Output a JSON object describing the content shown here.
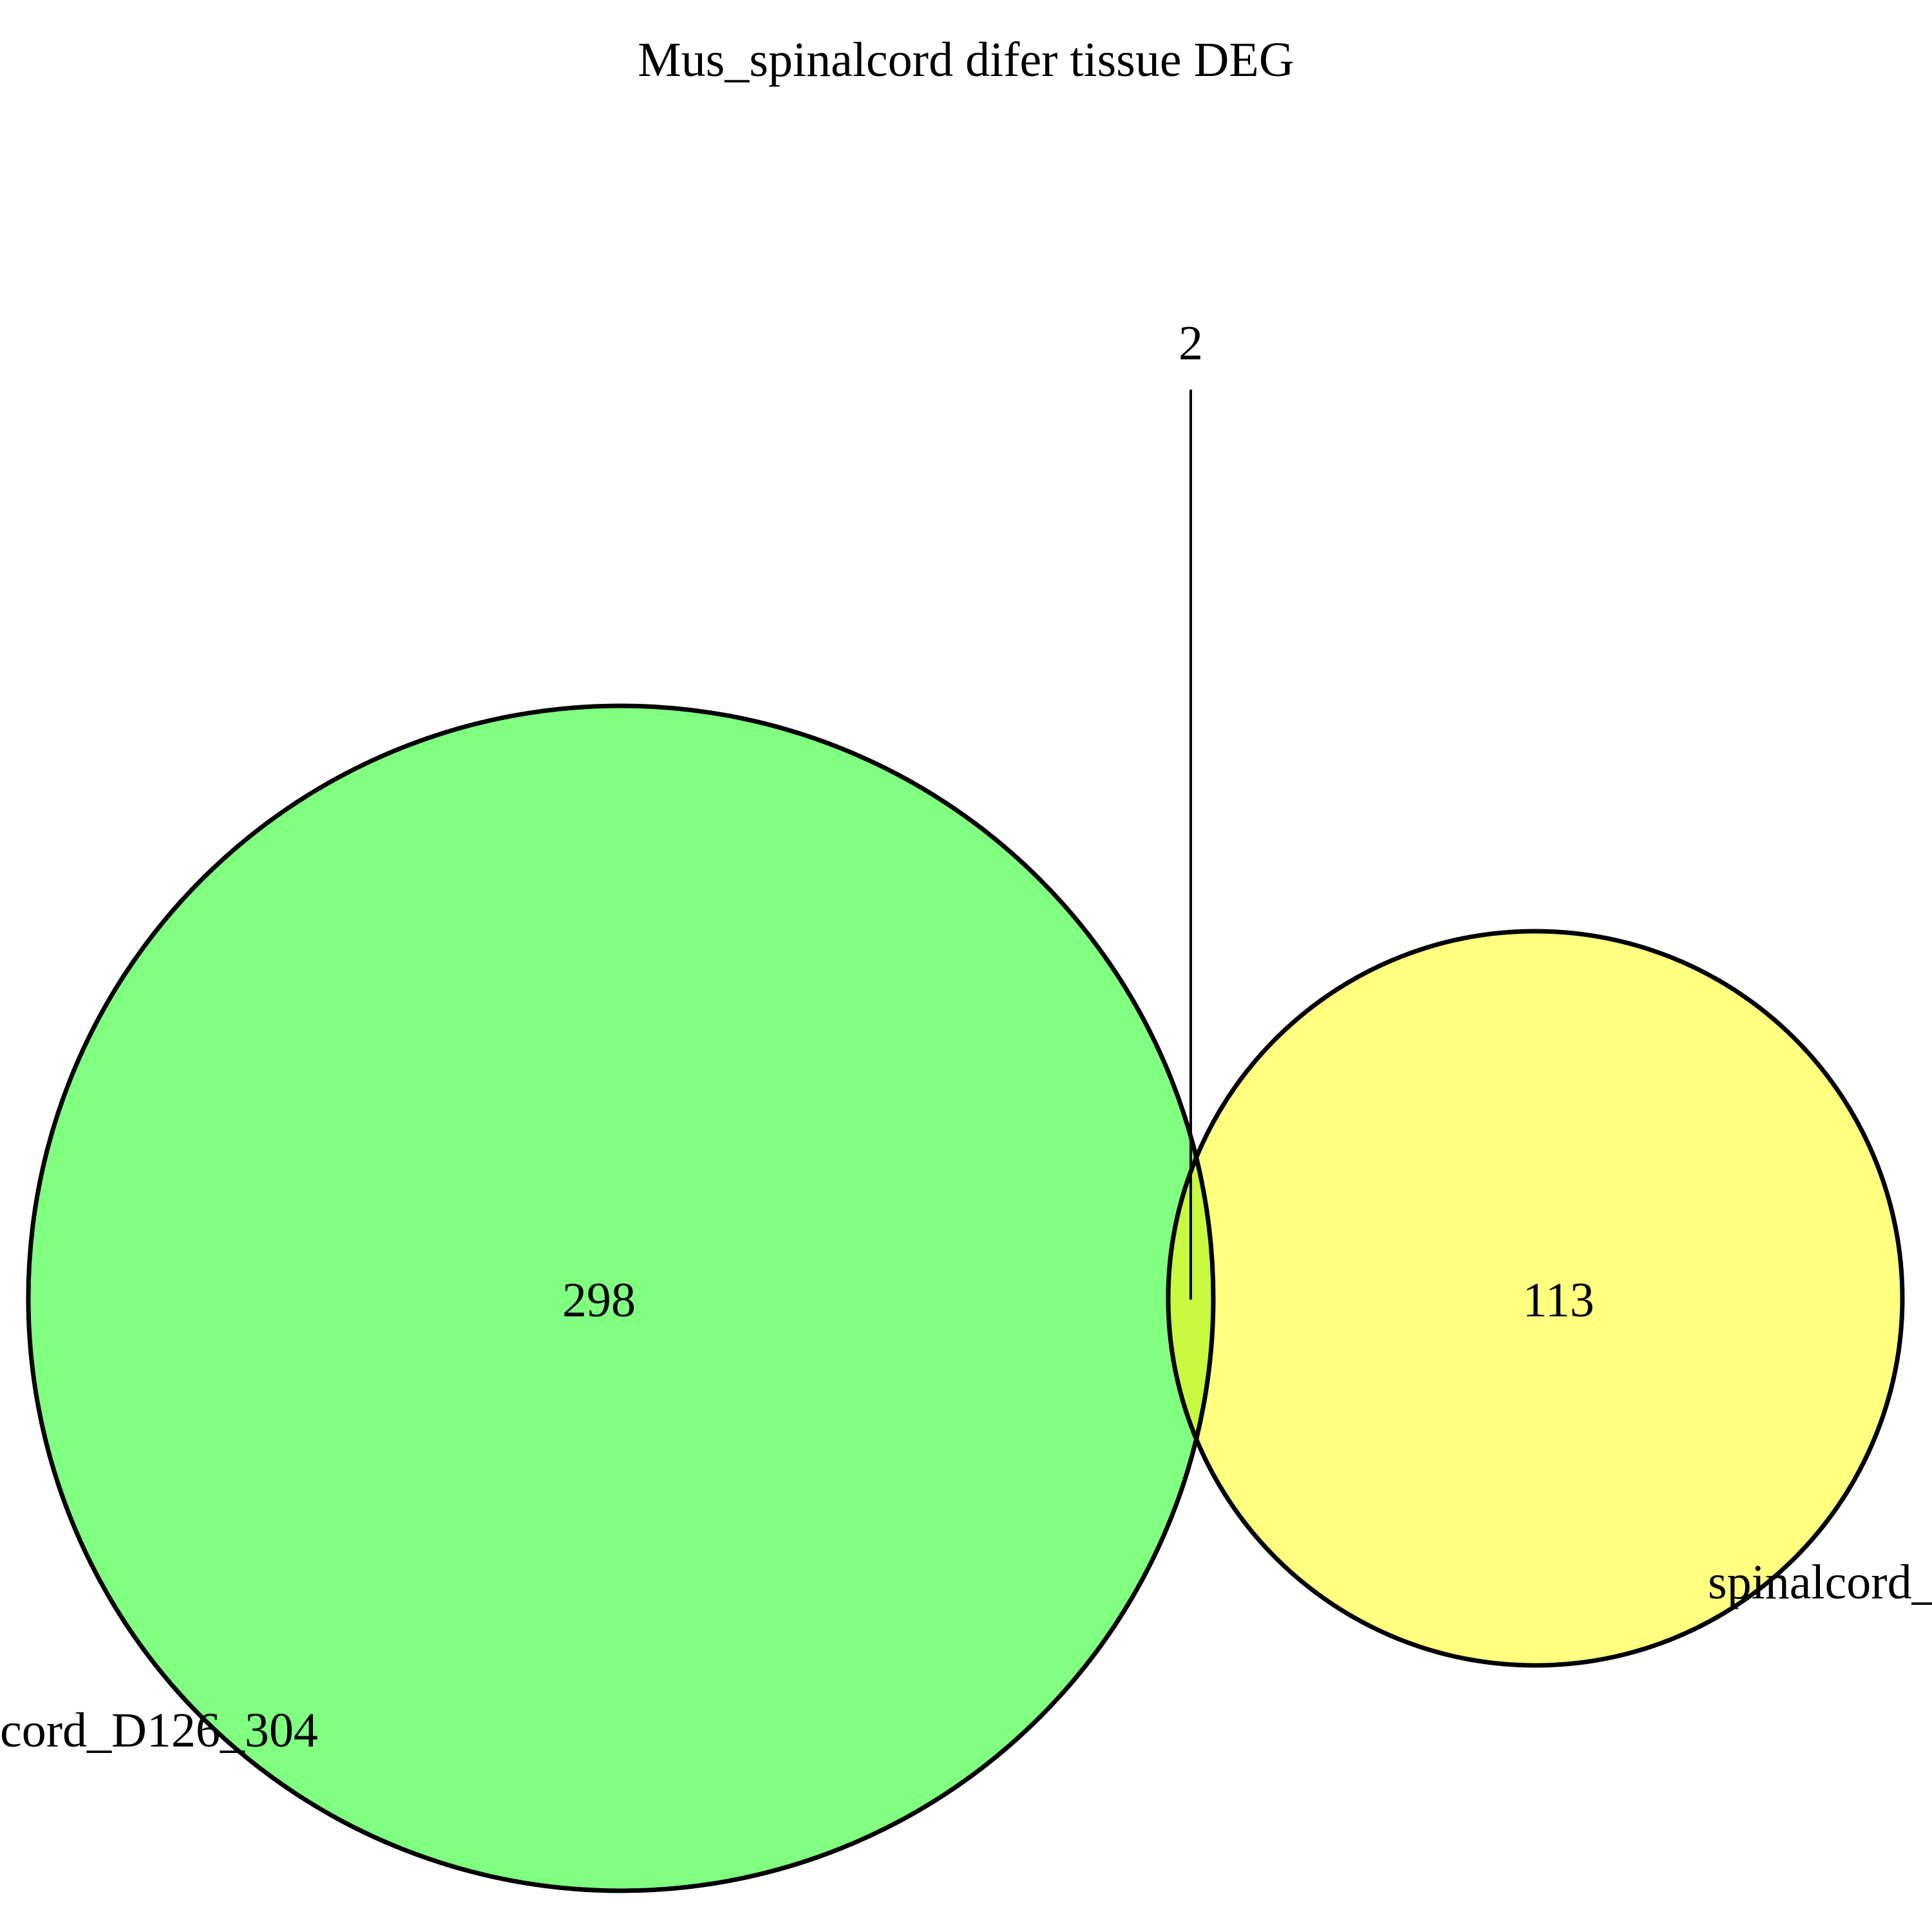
{
  "title": "Mus_spinalcord difer tissue DEG",
  "sets": [
    {
      "label": "cord_D126_304",
      "count": "298",
      "fill": "#80FF80"
    },
    {
      "label": "spinalcord_",
      "count": "113",
      "fill": "#FFFF80"
    }
  ],
  "intersection": {
    "count": "2",
    "fill": "#C8F840"
  },
  "colors": {
    "outline": "#000000",
    "background": "#FFFFFF"
  }
}
